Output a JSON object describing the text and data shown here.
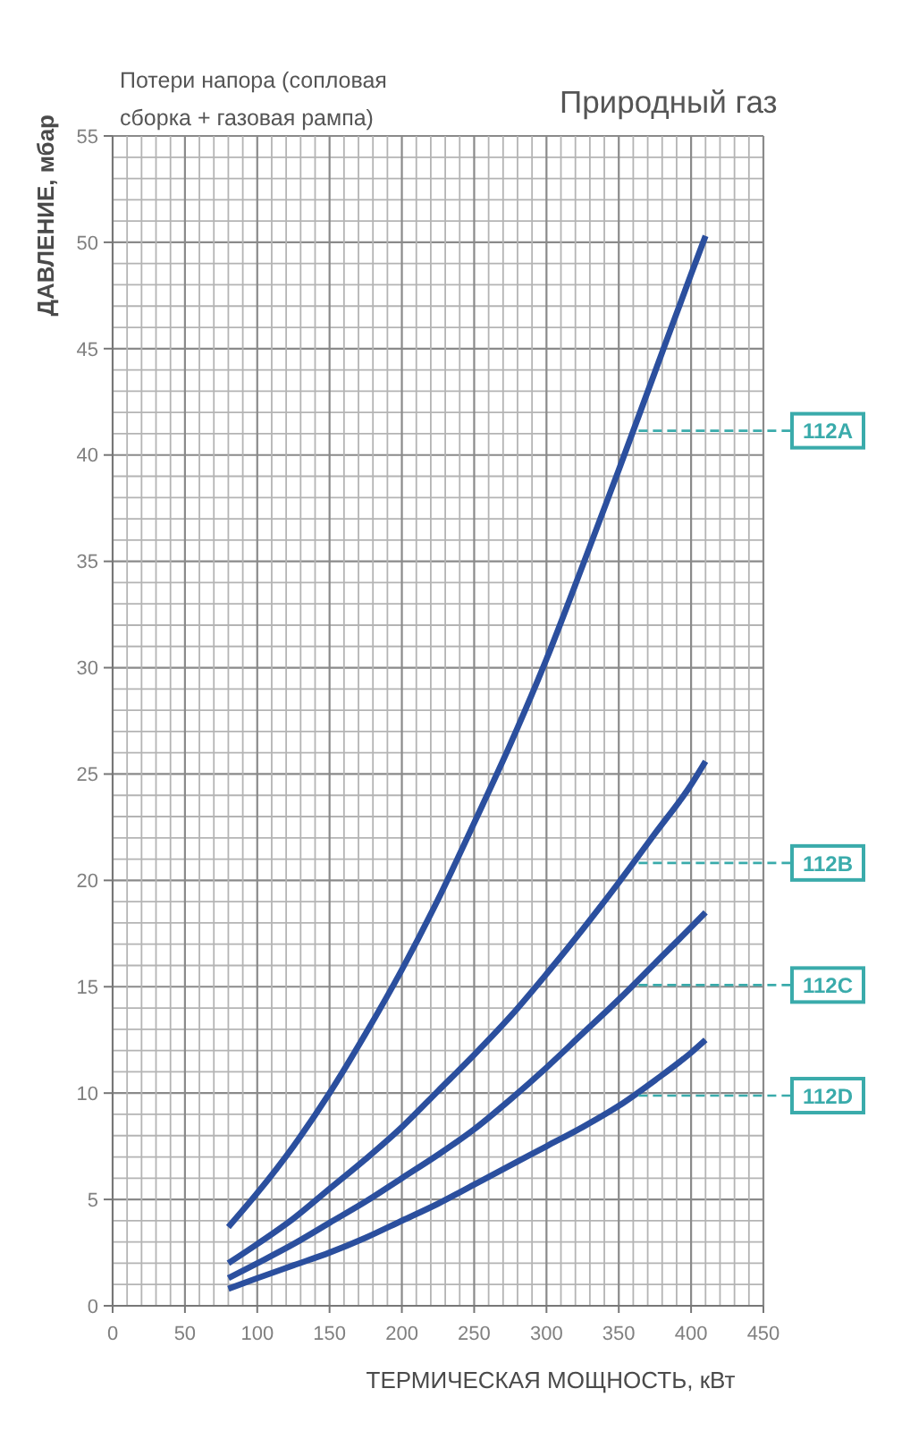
{
  "chart_data": {
    "type": "line",
    "title": "Природный газ",
    "subtitle": "Потери напора (сопловая сборка + газовая рампа)",
    "xlabel": "ТЕРМИЧЕСКАЯ МОЩНОСТЬ, кВт",
    "ylabel": "ДАВЛЕНИЕ, мбар",
    "x": [
      80,
      100,
      125,
      150,
      175,
      200,
      225,
      250,
      275,
      300,
      325,
      350,
      375,
      400,
      410
    ],
    "series": [
      {
        "name": "112A",
        "color": "#2b4f9e",
        "values": [
          3.7,
          5.3,
          7.5,
          10.0,
          12.8,
          15.8,
          19.1,
          22.7,
          26.4,
          30.4,
          34.8,
          39.3,
          43.9,
          48.5,
          50.3
        ]
      },
      {
        "name": "112B",
        "color": "#2b4f9e",
        "values": [
          2.0,
          2.9,
          4.1,
          5.5,
          6.9,
          8.4,
          10.1,
          11.8,
          13.6,
          15.6,
          17.7,
          19.9,
          22.2,
          24.5,
          25.6
        ]
      },
      {
        "name": "112C",
        "color": "#2b4f9e",
        "values": [
          1.3,
          2.0,
          2.9,
          3.9,
          4.9,
          6.0,
          7.1,
          8.3,
          9.7,
          11.2,
          12.8,
          14.4,
          16.1,
          17.8,
          18.5
        ]
      },
      {
        "name": "112D",
        "color": "#2b4f9e",
        "values": [
          0.8,
          1.3,
          1.9,
          2.5,
          3.2,
          4.0,
          4.8,
          5.7,
          6.6,
          7.5,
          8.4,
          9.4,
          10.6,
          11.9,
          12.5
        ]
      }
    ],
    "xlim": [
      0,
      450
    ],
    "ylim": [
      0,
      55
    ],
    "xticks": [
      0,
      {
        "value": 10,
        "label": null
      },
      {
        "value": 20,
        "label": null
      },
      {
        "value": 30,
        "label": null
      },
      {
        "value": 40,
        "label": null
      },
      50,
      {
        "value": 60,
        "label": null
      },
      {
        "value": 70,
        "label": null
      },
      {
        "value": 80,
        "label": null
      },
      {
        "value": 90,
        "label": null
      },
      100,
      {
        "value": 110,
        "label": null
      },
      {
        "value": 120,
        "label": null
      },
      {
        "value": 130,
        "label": null
      },
      {
        "value": 140,
        "label": null
      },
      150,
      {
        "value": 160,
        "label": null
      },
      {
        "value": 170,
        "label": null
      },
      {
        "value": 180,
        "label": null
      },
      {
        "value": 190,
        "label": null
      },
      200,
      {
        "value": 210,
        "label": null
      },
      {
        "value": 220,
        "label": null
      },
      {
        "value": 230,
        "label": null
      },
      {
        "value": 240,
        "label": null
      },
      250,
      {
        "value": 260,
        "label": null
      },
      {
        "value": 270,
        "label": null
      },
      {
        "value": 280,
        "label": null
      },
      {
        "value": 290,
        "label": null
      },
      300,
      {
        "value": 310,
        "label": null
      },
      {
        "value": 320,
        "label": null
      },
      {
        "value": 330,
        "label": null
      },
      {
        "value": 340,
        "label": null
      },
      350,
      {
        "value": 360,
        "label": null
      },
      {
        "value": 370,
        "label": null
      },
      {
        "value": 380,
        "label": null
      },
      {
        "value": 390,
        "label": null
      },
      400,
      {
        "value": 410,
        "label": null
      },
      {
        "value": 420,
        "label": null
      },
      {
        "value": 430,
        "label": null
      },
      {
        "value": 440,
        "label": null
      },
      450
    ],
    "yticks": [
      0,
      {
        "value": 1,
        "label": null
      },
      {
        "value": 2,
        "label": null
      },
      {
        "value": 3,
        "label": null
      },
      {
        "value": 4,
        "label": null
      },
      5,
      {
        "value": 6,
        "label": null
      },
      {
        "value": 7,
        "label": null
      },
      {
        "value": 8,
        "label": null
      },
      {
        "value": 9,
        "label": null
      },
      10,
      {
        "value": 11,
        "label": null
      },
      {
        "value": 12,
        "label": null
      },
      {
        "value": 13,
        "label": null
      },
      {
        "value": 14,
        "label": null
      },
      15,
      {
        "value": 16,
        "label": null
      },
      {
        "value": 17,
        "label": null
      },
      {
        "value": 18,
        "label": null
      },
      {
        "value": 19,
        "label": null
      },
      20,
      {
        "value": 21,
        "label": null
      },
      {
        "value": 22,
        "label": null
      },
      {
        "value": 23,
        "label": null
      },
      {
        "value": 24,
        "label": null
      },
      25,
      {
        "value": 26,
        "label": null
      },
      {
        "value": 27,
        "label": null
      },
      {
        "value": 28,
        "label": null
      },
      {
        "value": 29,
        "label": null
      },
      30,
      {
        "value": 31,
        "label": null
      },
      {
        "value": 32,
        "label": null
      },
      {
        "value": 33,
        "label": null
      },
      {
        "value": 34,
        "label": null
      },
      35,
      {
        "value": 36,
        "label": null
      },
      {
        "value": 37,
        "label": null
      },
      {
        "value": 38,
        "label": null
      },
      {
        "value": 39,
        "label": null
      },
      40,
      {
        "value": 41,
        "label": null
      },
      {
        "value": 42,
        "label": null
      },
      {
        "value": 43,
        "label": null
      },
      {
        "value": 44,
        "label": null
      },
      45,
      {
        "value": 46,
        "label": null
      },
      {
        "value": 47,
        "label": null
      },
      {
        "value": 48,
        "label": null
      },
      {
        "value": 49,
        "label": null
      },
      50,
      {
        "value": 51,
        "label": null
      },
      {
        "value": 52,
        "label": null
      },
      {
        "value": 53,
        "label": null
      },
      {
        "value": 54,
        "label": null
      },
      55
    ],
    "grid": true,
    "marker": "none",
    "line_style": "solid"
  }
}
